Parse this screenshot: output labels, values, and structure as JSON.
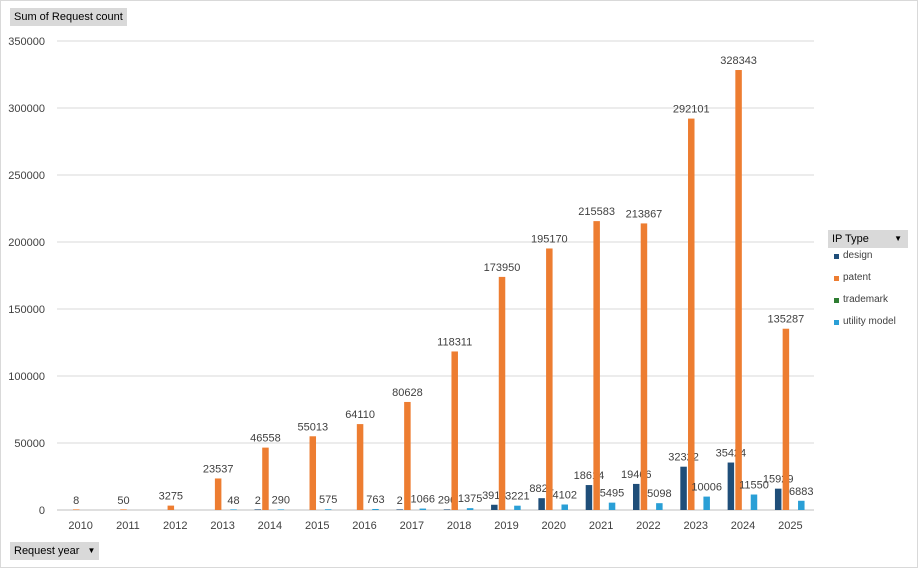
{
  "pivot": {
    "value_field": "Sum of Request count",
    "axis_field": "Request year",
    "legend_field": "IP Type"
  },
  "chart_data": {
    "type": "bar",
    "title": "",
    "xlabel": "",
    "ylabel": "",
    "categories": [
      "2010",
      "2011",
      "2012",
      "2013",
      "2014",
      "2015",
      "2016",
      "2017",
      "2018",
      "2019",
      "2020",
      "2021",
      "2022",
      "2023",
      "2024",
      "2025"
    ],
    "ylim": [
      0,
      350000
    ],
    "yticks": [
      0,
      50000,
      100000,
      150000,
      200000,
      250000,
      300000,
      350000
    ],
    "grid": true,
    "legend_position": "right",
    "series": [
      {
        "name": "design",
        "color": "#1f4e79",
        "values": [
          null,
          null,
          null,
          null,
          2,
          null,
          null,
          2,
          296,
          3914,
          8824,
          18614,
          19466,
          32322,
          35424,
          15929
        ]
      },
      {
        "name": "patent",
        "color": "#ed7d31",
        "values": [
          8,
          50,
          3275,
          23537,
          46558,
          55013,
          64110,
          80628,
          118311,
          173950,
          195170,
          215583,
          213867,
          292101,
          328343,
          135287
        ]
      },
      {
        "name": "trademark",
        "color": "#2e7d32",
        "values": [
          null,
          null,
          null,
          null,
          null,
          null,
          null,
          null,
          null,
          null,
          null,
          null,
          null,
          null,
          null,
          null
        ]
      },
      {
        "name": "utility model",
        "color": "#2a9fd6",
        "values": [
          null,
          null,
          null,
          48,
          290,
          575,
          763,
          1066,
          1375,
          3221,
          4102,
          5495,
          5098,
          10006,
          11550,
          6883
        ]
      }
    ]
  }
}
